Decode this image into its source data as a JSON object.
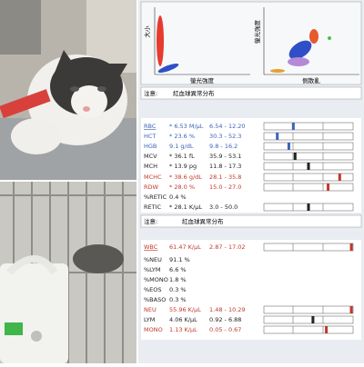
{
  "scatter_panel": {
    "left_y_label": "大小",
    "left_x_label": "螢光強度",
    "right_y_label": "螢光強度",
    "right_x_label": "側散亂"
  },
  "rbc_note": {
    "label": "注意:",
    "text": "紅血球異常分布"
  },
  "rbc_table": {
    "rows": [
      {
        "name": "RBC",
        "value": "* 6.53 M/µL",
        "range": "6.54 - 12.20",
        "color": "#3a63b8"
      },
      {
        "name": "HCT",
        "value": "* 23.6 %",
        "range": "30.3 - 52.3",
        "color": "#3a63b8"
      },
      {
        "name": "HGB",
        "value": "9.1 g/dL",
        "range": "9.8 - 16.2",
        "color": "#3a63b8"
      },
      {
        "name": "MCV",
        "value": "* 36.1 fL",
        "range": "35.9 - 53.1",
        "color": "#222222"
      },
      {
        "name": "MCH",
        "value": "* 13.9 pg",
        "range": "11.8 - 17.3",
        "color": "#222222"
      },
      {
        "name": "MCHC",
        "value": "* 38.6 g/dL",
        "range": "28.1 - 35.8",
        "color": "#c0392b"
      },
      {
        "name": "RDW",
        "value": "* 28.0 %",
        "range": "15.0 - 27.0",
        "color": "#c0392b"
      },
      {
        "name": "%RETIC",
        "value": "0.4 %",
        "range": null,
        "color": "#222222"
      },
      {
        "name": "RETIC",
        "value": "* 28.1 K/µL",
        "range": "3.0 - 50.0",
        "color": "#222222"
      }
    ]
  },
  "rbc_note_2": {
    "label": "注意:",
    "text": "紅血球異常分布"
  },
  "wbc_table": {
    "rows": [
      {
        "name": "WBC",
        "value": "61.47 K/µL",
        "range": "2.87 - 17.02",
        "color": "#c0392b"
      },
      {
        "name": "%NEU",
        "value": "91.1 %",
        "range": null,
        "color": "#222222"
      },
      {
        "name": "%LYM",
        "value": "6.6 %",
        "range": null,
        "color": "#222222"
      },
      {
        "name": "%MONO",
        "value": "1.8 %",
        "range": null,
        "color": "#222222"
      },
      {
        "name": "%EOS",
        "value": "0.3 %",
        "range": null,
        "color": "#222222"
      },
      {
        "name": "%BASO",
        "value": "0.3 %",
        "range": null,
        "color": "#222222"
      },
      {
        "name": "NEU",
        "value": "55.96 K/µL",
        "range": "1.48 - 10.29",
        "color": "#c0392b"
      },
      {
        "name": "LYM",
        "value": "4.06 K/µL",
        "range": "0.92 - 6.88",
        "color": "#222222"
      },
      {
        "name": "MONO",
        "value": "1.13 K/µL",
        "range": "0.05 - 0.67",
        "color": "#c0392b"
      }
    ]
  }
}
